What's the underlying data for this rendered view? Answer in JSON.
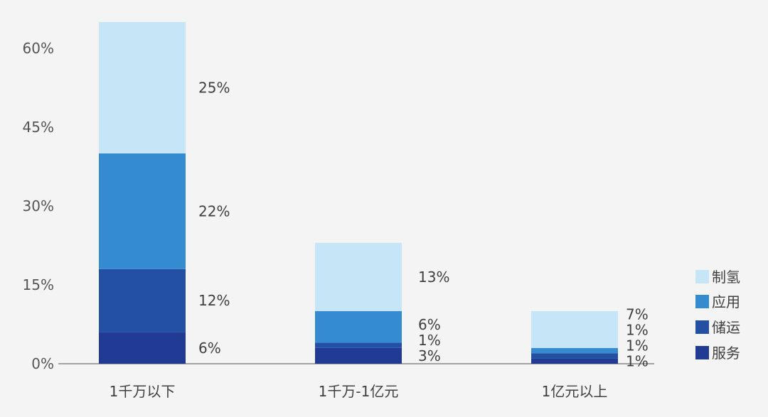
{
  "chart_data": {
    "type": "bar",
    "stacked": true,
    "categories": [
      "1千万以下",
      "1千万-1亿元",
      "1亿元以上"
    ],
    "series": [
      {
        "name": "服务",
        "values": [
          6,
          3,
          1
        ],
        "labels": [
          "6%",
          "3%",
          "1%"
        ],
        "color": "#213a94"
      },
      {
        "name": "储运",
        "values": [
          12,
          1,
          1
        ],
        "labels": [
          "12%",
          "1%",
          "1%"
        ],
        "color": "#2450a4"
      },
      {
        "name": "应用",
        "values": [
          22,
          6,
          1
        ],
        "labels": [
          "22%",
          "6%",
          "1%"
        ],
        "color": "#358bd0"
      },
      {
        "name": "制氢",
        "values": [
          25,
          13,
          7
        ],
        "labels": [
          "25%",
          "13%",
          "7%"
        ],
        "color": "#c6e6f8"
      }
    ],
    "legend_order": [
      "制氢",
      "应用",
      "储运",
      "服务"
    ],
    "legend_placement": "right",
    "ylim": [
      0,
      65
    ],
    "yticks": [
      0,
      15,
      30,
      45,
      60
    ],
    "ytick_labels": [
      "0%",
      "15%",
      "30%",
      "45%",
      "60%"
    ],
    "grid": false,
    "title": "",
    "xlabel": "",
    "ylabel": ""
  }
}
